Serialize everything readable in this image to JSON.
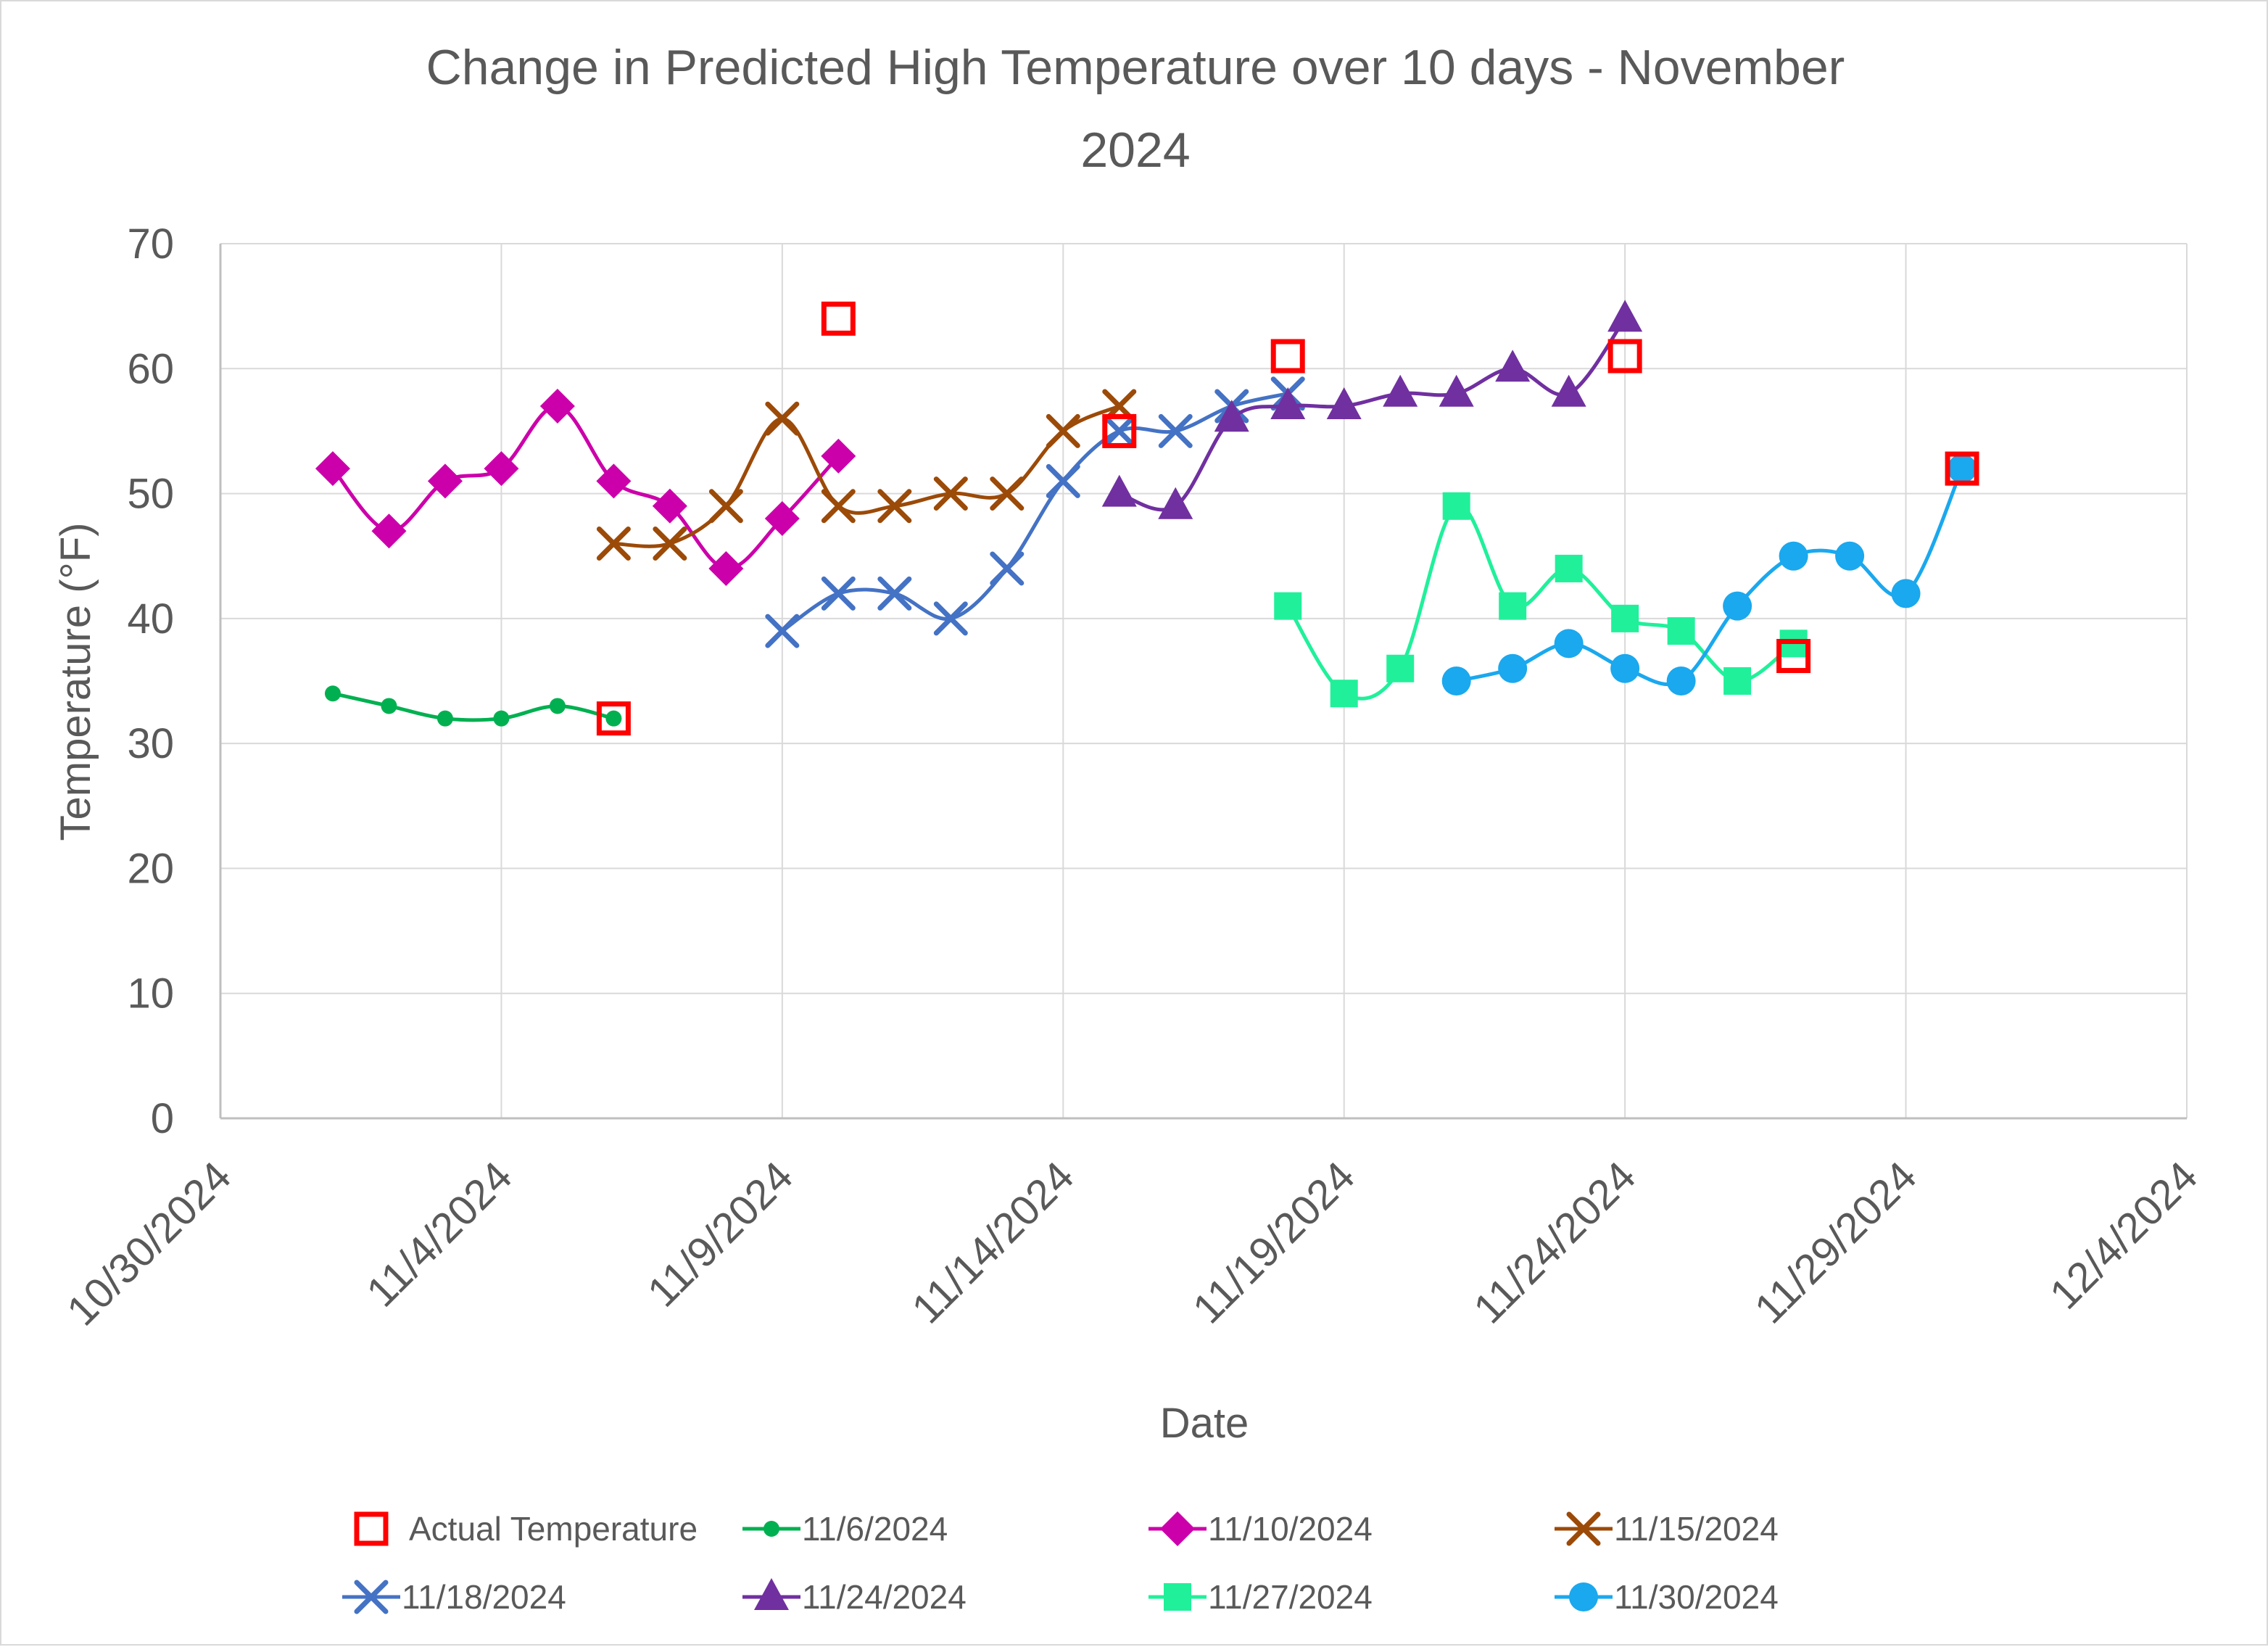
{
  "chart_data": {
    "type": "scatter",
    "title_lines": [
      "Change in Predicted High Temperature over 10 days - November",
      "2024"
    ],
    "xlabel": "Date",
    "ylabel": "Temperature  (°F)",
    "ylim": [
      0,
      70
    ],
    "yticks": [
      0,
      10,
      20,
      30,
      40,
      50,
      60,
      70
    ],
    "xlim_days": [
      0,
      35
    ],
    "xticks": [
      {
        "day": 0,
        "label": "10/30/2024"
      },
      {
        "day": 5,
        "label": "11/4/2024"
      },
      {
        "day": 10,
        "label": "11/9/2024"
      },
      {
        "day": 15,
        "label": "11/14/2024"
      },
      {
        "day": 20,
        "label": "11/19/2024"
      },
      {
        "day": 25,
        "label": "11/24/2024"
      },
      {
        "day": 30,
        "label": "11/29/2024"
      },
      {
        "day": 35,
        "label": "12/4/2024"
      }
    ],
    "x_note": "x values are days since 10/30/2024",
    "grid": true,
    "legend_position": "bottom",
    "series": [
      {
        "name": "Actual Temperature",
        "color": "#ff0000",
        "marker": "hollow-square",
        "line": false,
        "x": [
          7,
          11,
          16,
          19,
          25,
          28,
          31
        ],
        "y": [
          32,
          64,
          55,
          61,
          61,
          37,
          52
        ]
      },
      {
        "name": "11/6/2024",
        "color": "#00b050",
        "marker": "circle-small",
        "line": true,
        "x": [
          2,
          3,
          4,
          5,
          6,
          7
        ],
        "y": [
          34,
          33,
          32,
          32,
          33,
          32
        ]
      },
      {
        "name": "11/10/2024",
        "color": "#cc00aa",
        "marker": "diamond",
        "line": true,
        "x": [
          2,
          3,
          4,
          5,
          6,
          7,
          8,
          9,
          10,
          11
        ],
        "y": [
          52,
          47,
          51,
          52,
          57,
          51,
          49,
          44,
          48,
          53
        ]
      },
      {
        "name": "11/15/2024",
        "color": "#9c4a08",
        "marker": "x",
        "line": true,
        "x": [
          7,
          8,
          9,
          10,
          11,
          12,
          13,
          14,
          15,
          16
        ],
        "y": [
          46,
          46,
          49,
          56,
          49,
          49,
          50,
          50,
          55,
          57
        ]
      },
      {
        "name": "11/18/2024",
        "color": "#4472c4",
        "marker": "x",
        "line": true,
        "x": [
          10,
          11,
          12,
          13,
          14,
          15,
          16,
          17,
          18,
          19
        ],
        "y": [
          39,
          42,
          42,
          40,
          44,
          51,
          55,
          55,
          57,
          58
        ]
      },
      {
        "name": "11/24/2024",
        "color": "#7030a0",
        "marker": "triangle",
        "line": true,
        "x": [
          16,
          17,
          18,
          19,
          20,
          21,
          22,
          23,
          24,
          25
        ],
        "y": [
          50,
          49,
          56,
          57,
          57,
          58,
          58,
          60,
          58,
          64
        ]
      },
      {
        "name": "11/27/2024",
        "color": "#20f09a",
        "marker": "square",
        "line": true,
        "x": [
          19,
          20,
          21,
          22,
          23,
          24,
          25,
          26,
          27,
          28
        ],
        "y": [
          41,
          34,
          36,
          49,
          41,
          44,
          40,
          39,
          35,
          38
        ]
      },
      {
        "name": "11/30/2024",
        "color": "#1aa8ee",
        "marker": "circle",
        "line": true,
        "x": [
          22,
          23,
          24,
          25,
          26,
          27,
          28,
          29,
          30,
          31
        ],
        "y": [
          35,
          36,
          38,
          36,
          35,
          41,
          45,
          45,
          42,
          52
        ]
      }
    ]
  }
}
